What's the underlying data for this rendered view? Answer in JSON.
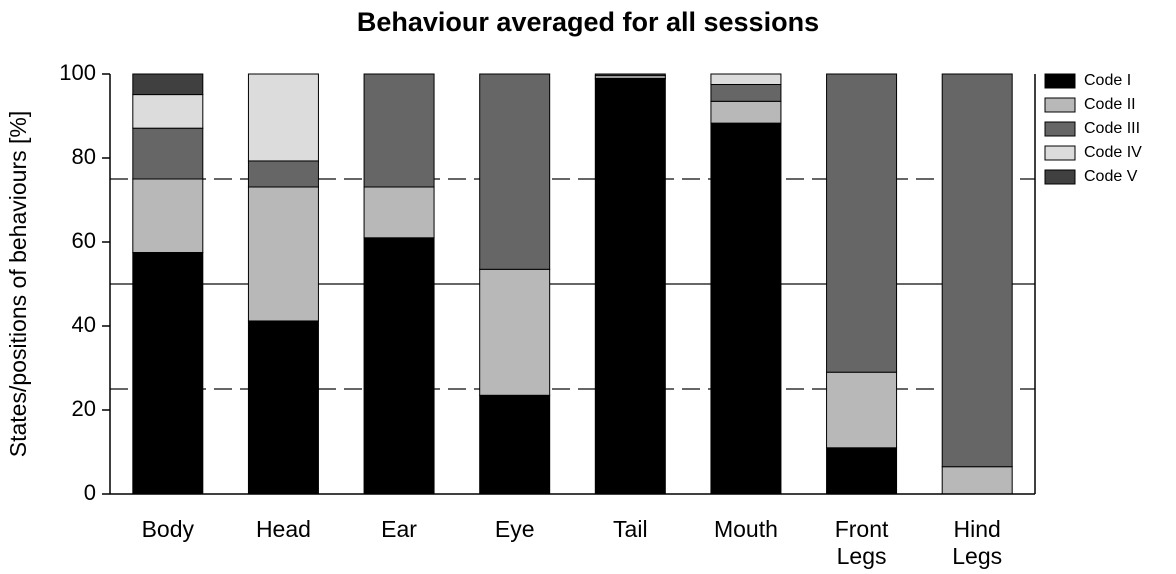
{
  "chart_data": {
    "type": "stacked_bar",
    "title": "Behaviour averaged for all sessions",
    "ylabel": "States/positions of behaviours [%]",
    "categories": [
      "Body",
      "Head",
      "Ear",
      "Eye",
      "Tail",
      "Mouth",
      "Front\nLegs",
      "Hind\nLegs"
    ],
    "series": [
      {
        "name": "Code I",
        "color": "#000000",
        "values": [
          57.5,
          41.2,
          61,
          23.5,
          98.8,
          88.3,
          11,
          0
        ]
      },
      {
        "name": "Code II",
        "color": "#b8b8b8",
        "values": [
          17.5,
          31.9,
          12.1,
          30,
          0,
          5.2,
          18,
          6.5
        ]
      },
      {
        "name": "Code III",
        "color": "#666666",
        "values": [
          12.1,
          6.2,
          26.9,
          46.5,
          0.2,
          4,
          71,
          93.5
        ]
      },
      {
        "name": "Code IV",
        "color": "#dcdcdc",
        "values": [
          8,
          20.7,
          0,
          0,
          0.6,
          2.5,
          0,
          0
        ]
      },
      {
        "name": "Code V",
        "color": "#404040",
        "values": [
          4.9,
          0,
          0,
          0,
          0.4,
          0,
          0,
          0
        ]
      }
    ],
    "ylim": [
      0,
      100
    ],
    "yticks": [
      0,
      20,
      40,
      60,
      80,
      100
    ],
    "reference_lines": [
      {
        "value": 25,
        "style": "dashed"
      },
      {
        "value": 50,
        "style": "solid"
      },
      {
        "value": 75,
        "style": "dashed"
      }
    ],
    "legend": "right"
  }
}
